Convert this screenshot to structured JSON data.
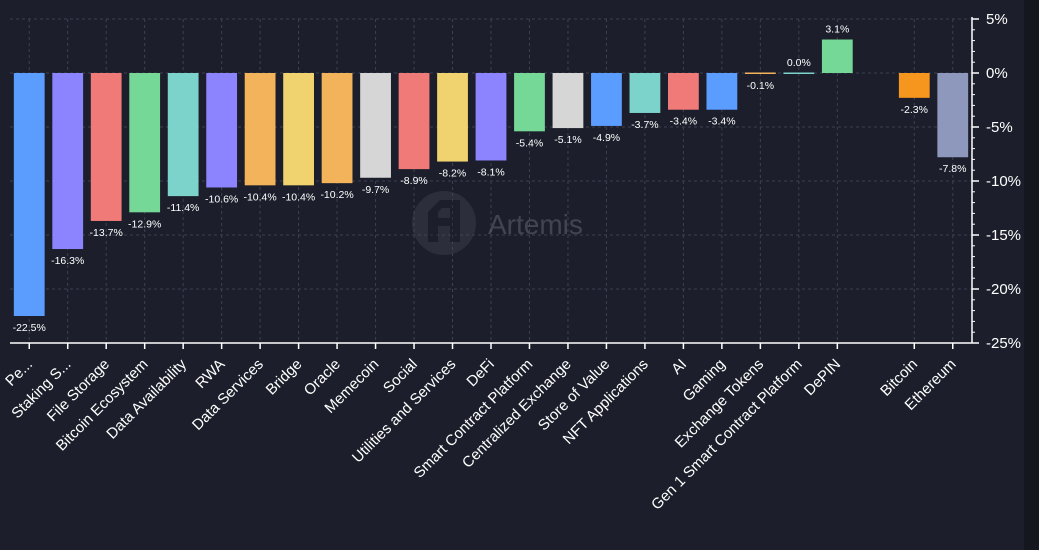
{
  "watermark": {
    "text": "Artemis",
    "icon": "artemis-logo-icon"
  },
  "chart_data": {
    "type": "bar",
    "categories": [
      "Pe...",
      "Staking S...",
      "File Storage",
      "Bitcoin Ecosystem",
      "Data Availability",
      "RWA",
      "Data Services",
      "Bridge",
      "Oracle",
      "Memecoin",
      "Social",
      "Utilities and Services",
      "DeFi",
      "Smart Contract Platform",
      "Centralized Exchange",
      "Store of Value",
      "NFT Applications",
      "AI",
      "Gaming",
      "Exchange Tokens",
      "Gen 1 Smart Contract Platform",
      "DePIN",
      "",
      "Bitcoin",
      "Ethereum"
    ],
    "values": [
      -22.5,
      -16.3,
      -13.7,
      -12.9,
      -11.4,
      -10.6,
      -10.4,
      -10.4,
      -10.2,
      -9.7,
      -8.9,
      -8.2,
      -8.1,
      -5.4,
      -5.1,
      -4.9,
      -3.7,
      -3.4,
      -3.4,
      -0.1,
      0.0,
      3.1,
      null,
      -2.3,
      -7.8
    ],
    "value_labels": [
      "-22.5%",
      "-16.3%",
      "-13.7%",
      "-12.9%",
      "-11.4%",
      "-10.6%",
      "-10.4%",
      "-10.4%",
      "-10.2%",
      "-9.7%",
      "-8.9%",
      "-8.2%",
      "-8.1%",
      "-5.4%",
      "-5.1%",
      "-4.9%",
      "-3.7%",
      "-3.4%",
      "-3.4%",
      "-0.1%",
      "0.0%",
      "3.1%",
      "",
      "-2.3%",
      "-7.8%"
    ],
    "colors": [
      "#5b9cff",
      "#8c84ff",
      "#f07a78",
      "#75d896",
      "#7bd3cb",
      "#8c84ff",
      "#f3b35a",
      "#f0d26e",
      "#f3b35a",
      "#d6d6d6",
      "#f07a78",
      "#f0d26e",
      "#8c84ff",
      "#75d896",
      "#d6d6d6",
      "#5b9cff",
      "#7bd3cb",
      "#f07a78",
      "#5b9cff",
      "#f3b35a",
      "#7bd3cb",
      "#75d896",
      "#000000",
      "#f7961e",
      "#8e98bd"
    ],
    "yticks": [
      5,
      0,
      -5,
      -10,
      -15,
      -20,
      -25
    ],
    "ytick_labels": [
      "5%",
      "0%",
      "-5%",
      "-10%",
      "-15%",
      "-20%",
      "-25%"
    ],
    "ylim": [
      -25,
      5
    ],
    "ylabel": "",
    "xlabel": "",
    "title": "",
    "grid": true,
    "y_axis_position": "right",
    "background": "#1c1f2b"
  }
}
